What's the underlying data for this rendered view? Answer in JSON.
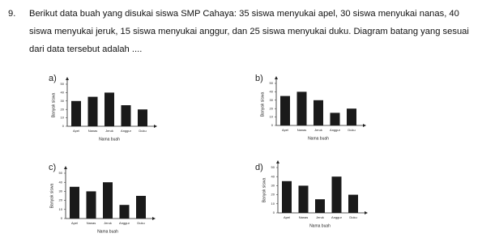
{
  "question": {
    "number": "9.",
    "text": "Berikut data buah yang disukai siswa SMP Cahaya: 35 siswa menyukai apel, 30 siswa menyukai nanas, 40 siswa menyukai jeruk, 15 siswa menyukai anggur, dan 25 siswa menyukai duku. Diagram batang yang sesuai dari data tersebut adalah ...."
  },
  "axes": {
    "ylabel": "Banyak siswa",
    "xlabel": "Nama buah",
    "categories": [
      "Apel",
      "Nanas",
      "Jeruk",
      "Anggur",
      "Duku"
    ],
    "ylim": [
      0,
      50
    ],
    "yticks": [
      0,
      10,
      20,
      30,
      40,
      50
    ],
    "color": "#1a1a1a"
  },
  "options": [
    {
      "label": "a)",
      "values": [
        30,
        35,
        40,
        25,
        20
      ]
    },
    {
      "label": "b)",
      "values": [
        35,
        40,
        30,
        15,
        20
      ]
    },
    {
      "label": "c)",
      "values": [
        35,
        30,
        40,
        15,
        25
      ]
    },
    {
      "label": "d)",
      "values": [
        35,
        30,
        15,
        40,
        20
      ]
    }
  ]
}
